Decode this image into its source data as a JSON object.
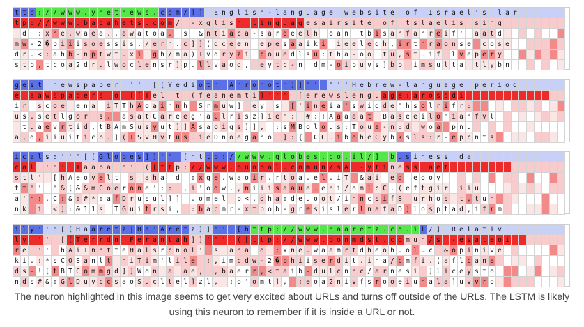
{
  "blocks": [
    {
      "rows": [
        "ttp://www.ynetnews.com/]] English-language website of Israel's lar",
        "tp://www.bacahets.com/ -xglish linguagesairsite of tslaelis sing",
        " d :xne.waea..awatoa. s &ntiaca-sardeelh oan tbisanfanreif' aatd",
        "mw-2�piiisoessis./ern.c]](dceen epesaaiki ieeledh,irthraonse cose",
        "dr.<:ahb-nptwt.xi gh/ma)Tvdryzi couedlsu:tha-oo tu,stuif lvepery",
        "stp,tcoa2drulwoclensr]p.llvaod, eytc-n dm-oibuvs]bb imsulta tlybn"
      ],
      "header_colors": "BBBGGGGGGGGGGGGGGGGBBBBBBbbbbbbbbbbbbbbbbbbbbbbbbbbbbbbbbbbbbbbbbb",
      "second_colors": "RRRRRRRRRRRRRRRRRRRRR rrrrrrrRRRRRRRRRrrrrrrrrrrrrrrrrrrrrrrrrrrrrr"
    },
    {
      "rows": [
        "gest newspaper '' [[Yedioth Ahronoth]]'' '''Hebrew-language period",
        "e aawspapers o [[Tel t (feanemti]''' [erewslenguage:arosodi",
        "ir scoe ena iTThAoainnh Srmuw] ey s ['ineia'swidde'hsolrifr:",
        "us.setlgor s. asatCareeg'aClrisz]ie': #:TAaaaat Baseeilo'ianfvl",
        " tuaevrtid,tBAmSusyut]]Asaoigs]], :sMBolous:Toua-n:d woa pnu",
        "a,d,iiuiticp.](ISvHvtusuieDnoegano ]:{ CCuiboheCybksls:r-epcnts"
      ],
      "header_colors": "BBBBbbbbbbbbbbbbbbbbbbbbBBBBBBBBBBBBBBBBBbbbbbbbbbbbbbbbbbbbbbbbbbbbbbbbbbbbbb",
      "second_colors": "RRRRRRRRRRRRRRRRRRrrrrrrrrrrrrrrRRRRrrrrrrrrrrrrRRRRRRRRRRRRRRRRRRRRRRrrrrrrrr"
    },
    {
      "rows": [
        "icals:'''[[Globes]]'' [http://www.globes.co.il/] business da",
        "cal ''' Taaba '' ([ttp://www.buobal.comun/sA -ytiness aet",
        "stl' [hAeovelt s aha d :xge.waoir.rtoa.el.iT &ai eg eooy",
        "tt'' '&[&&mCoerone':: ,i'odw.,niiisaaue.eni/omlcC.(eftgir iiu",
        "a'n:.C:&:#*:afDrusul]] .omel p<,dha:deuoot/ihncsifS urhos t,tun",
        "nk i <]:&11s TGuitrsi, :bacmr-xtpob-gresislerlnafaD]losptad,ifrm"
      ],
      "header_colors": "BBBBbbbbbbbBBBBBBBBBBBbbbBBBBGGGGGGGGGGGGGGGGGGGGGBBbbbbbbbbbbbbbbbbbbbbbb",
      "second_colors": "RRRrrrRRRrrrrrrrrrRRRrrRRRRRRRRRRRRRRRRRRRRRRRRRRrrRRRRRRRRRRRRRRrrrrrrrr"
    },
    {
      "rows": [
        "ily'''[[Haaretz|Ha'Aretz]]'' [http://www.haaretz.co.il/] Relativ",
        "ly '' [[Terrdn Ferantah]]''' ([ttp://www.bonmdst.comun/s -esateoi",
        "re '' hAiInntteHalsrcnol' s aha d :xne.waamrtdheoh.ol.c &opinive",
        "ki.:*sCOSanlt hiTim'lile :,imcdw-2�phiiserdit.ina/cmfi.(aflcana",
        "ds-![tBTCommgd]]Won a ae, ,baerr,<taib-dulcnnc/arnesi ]liceysto",
        "nds#&:GlDuvccsaoSucltel]zl, :o'omt], :eoa2nivfsrooeiunala]uvvro"
      ],
      "header_colors": "BBBBbbbbbbBBBBBBBBBBBBBbbbBBBBBGGGGGGGGGGGGGGGGGGGGGGBbbbbbbbbbbbbbb",
      "second_colors": "RRRRrrrRRRRRRRRRRRRRRRRrrRRRRRRRRRRRRRRRRRRRRRRRRRRrrrRRRRRRRRRRRRR"
    }
  ],
  "caption_line1": "The neuron highlighted in this image seems to get very excited about URLs and turns off outside of the URLs. The LSTM is likely",
  "caption_line2": "using this neuron to remember if it is inside a URL or not.",
  "colors": {
    "blue_strong": "#5b6fe6",
    "blue_light": "#c9d0f7",
    "green_strong": "#55e64a",
    "red_strong": "#ee2b2b",
    "red_mid": "#f28a8a",
    "red_light": "#f8cccc",
    "pink_faint": "#fbe6e6",
    "white": "#ffffff"
  }
}
